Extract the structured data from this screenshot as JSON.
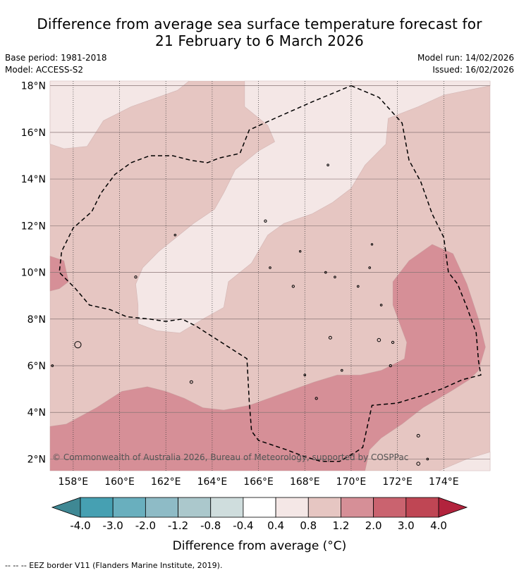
{
  "title": {
    "line1": "Difference from average sea surface temperature forecast for",
    "line2": "21 February to 6 March 2026"
  },
  "meta": {
    "base_period": "Base period: 1981-2018",
    "model": "Model: ACCESS-S2",
    "model_run": "Model run: 14/02/2026",
    "issued": "Issued: 16/02/2026"
  },
  "map": {
    "lon_range": [
      157,
      176
    ],
    "lat_range": [
      1.5,
      18.2
    ],
    "lat_ticks": [
      {
        "value": 18,
        "label": "18°N"
      },
      {
        "value": 16,
        "label": "16°N"
      },
      {
        "value": 14,
        "label": "14°N"
      },
      {
        "value": 12,
        "label": "12°N"
      },
      {
        "value": 10,
        "label": "10°N"
      },
      {
        "value": 8,
        "label": "8°N"
      },
      {
        "value": 6,
        "label": "6°N"
      },
      {
        "value": 4,
        "label": "4°N"
      },
      {
        "value": 2,
        "label": "2°N"
      }
    ],
    "lon_ticks": [
      {
        "value": 158,
        "label": "158°E"
      },
      {
        "value": 160,
        "label": "160°E"
      },
      {
        "value": 162,
        "label": "162°E"
      },
      {
        "value": 164,
        "label": "164°E"
      },
      {
        "value": 166,
        "label": "166°E"
      },
      {
        "value": 168,
        "label": "168°E"
      },
      {
        "value": 170,
        "label": "170°E"
      },
      {
        "value": 172,
        "label": "172°E"
      },
      {
        "value": 174,
        "label": "174°E"
      }
    ],
    "regions": [
      {
        "name": "anomaly-0.8-to-1.2",
        "color": "#e6c6c2",
        "points": [
          [
            157,
            18.2
          ],
          [
            176,
            18.2
          ],
          [
            176,
            1.5
          ],
          [
            157,
            1.5
          ]
        ]
      },
      {
        "name": "anomaly-0.4-to-0.8-north",
        "color": "#f4e7e6",
        "points": [
          [
            157,
            18.2
          ],
          [
            163,
            18.2
          ],
          [
            162.5,
            17.8
          ],
          [
            160.5,
            17.1
          ],
          [
            159.3,
            16.5
          ],
          [
            158.6,
            15.4
          ],
          [
            157.6,
            15.3
          ],
          [
            157,
            15.5
          ]
        ]
      },
      {
        "name": "anomaly-0.4-to-0.8-central",
        "color": "#f4e7e6",
        "points": [
          [
            165.4,
            18.2
          ],
          [
            176,
            18.2
          ],
          [
            176,
            18.0
          ],
          [
            174,
            17.6
          ],
          [
            172.9,
            17.1
          ],
          [
            171.6,
            16.6
          ],
          [
            171.5,
            15.5
          ],
          [
            170.6,
            14.6
          ],
          [
            170,
            13.6
          ],
          [
            169.2,
            13
          ],
          [
            168.3,
            12.5
          ],
          [
            167.1,
            12.1
          ],
          [
            166.4,
            11.6
          ],
          [
            165.7,
            10.4
          ],
          [
            164.7,
            9.6
          ],
          [
            164.5,
            8.5
          ],
          [
            163.6,
            8
          ],
          [
            162.6,
            7.4
          ],
          [
            161.6,
            7.5
          ],
          [
            160.8,
            7.8
          ],
          [
            160.8,
            8.6
          ],
          [
            160.7,
            9.5
          ],
          [
            161,
            10.2
          ],
          [
            161.7,
            10.9
          ],
          [
            163.2,
            12.1
          ],
          [
            164.1,
            12.7
          ],
          [
            164.5,
            13.4
          ],
          [
            165,
            14.4
          ],
          [
            166,
            15.2
          ],
          [
            166.7,
            15.6
          ],
          [
            166.4,
            16.3
          ],
          [
            165.4,
            17.1
          ]
        ]
      },
      {
        "name": "anomaly-0.4-to-0.8-southeast",
        "color": "#f4e7e6",
        "points": [
          [
            176,
            1.5
          ],
          [
            176,
            2.3
          ],
          [
            175,
            2
          ],
          [
            173.8,
            1.5
          ]
        ]
      },
      {
        "name": "anomaly-1.2-to-2.0-west",
        "color": "#d68f97",
        "points": [
          [
            157,
            10.7
          ],
          [
            157.6,
            10.5
          ],
          [
            157.8,
            9.6
          ],
          [
            157.4,
            9.3
          ],
          [
            157,
            9.2
          ]
        ]
      },
      {
        "name": "anomaly-1.2-to-2.0-south",
        "color": "#d68f97",
        "points": [
          [
            157,
            1.5
          ],
          [
            157,
            3.4
          ],
          [
            157.7,
            3.5
          ],
          [
            159,
            4.2
          ],
          [
            160.1,
            4.9
          ],
          [
            161.2,
            5.1
          ],
          [
            162,
            4.9
          ],
          [
            162.8,
            4.6
          ],
          [
            163.6,
            4.2
          ],
          [
            164.5,
            4.1
          ],
          [
            165.6,
            4.3
          ],
          [
            167,
            4.8
          ],
          [
            168.4,
            5.3
          ],
          [
            169.4,
            5.6
          ],
          [
            170.4,
            5.6
          ],
          [
            171.3,
            5.8
          ],
          [
            172.3,
            6.3
          ],
          [
            172.4,
            7
          ],
          [
            172.1,
            7.8
          ],
          [
            171.8,
            8.6
          ],
          [
            171.8,
            9.6
          ],
          [
            172.5,
            10.5
          ],
          [
            173.5,
            11.2
          ],
          [
            174.4,
            10.8
          ],
          [
            175,
            9.5
          ],
          [
            175.5,
            8
          ],
          [
            175.8,
            6.8
          ],
          [
            175.5,
            5.8
          ],
          [
            175.1,
            5.4
          ],
          [
            174.3,
            4.9
          ],
          [
            173.1,
            4.2
          ],
          [
            172.2,
            3.5
          ],
          [
            171.3,
            2.9
          ],
          [
            170.8,
            2.4
          ],
          [
            170.6,
            1.5
          ]
        ]
      }
    ],
    "eez_border": [
      [
        170,
        18
      ],
      [
        171.2,
        17.5
      ],
      [
        172.2,
        16.4
      ],
      [
        172.5,
        14.8
      ],
      [
        173,
        13.9
      ],
      [
        173.5,
        12.5
      ],
      [
        174,
        11.5
      ],
      [
        174.2,
        10
      ],
      [
        174.6,
        9.5
      ],
      [
        175,
        8.5
      ],
      [
        175.4,
        7.4
      ],
      [
        175.5,
        6.2
      ],
      [
        175.6,
        5.6
      ],
      [
        174.8,
        5.4
      ],
      [
        173.9,
        5
      ],
      [
        173,
        4.7
      ],
      [
        172,
        4.4
      ],
      [
        170.9,
        4.3
      ],
      [
        170.5,
        2.5
      ],
      [
        170.2,
        2.3
      ],
      [
        169.5,
        1.9
      ],
      [
        168.7,
        1.9
      ],
      [
        168,
        2.1
      ],
      [
        167.2,
        2.4
      ],
      [
        166,
        2.8
      ],
      [
        165.7,
        3.2
      ],
      [
        165.6,
        4.5
      ],
      [
        165.5,
        6.3
      ],
      [
        164.4,
        7
      ],
      [
        163.3,
        7.7
      ],
      [
        162.7,
        8
      ],
      [
        162,
        7.9
      ],
      [
        161.3,
        8
      ],
      [
        160.3,
        8.1
      ],
      [
        159.6,
        8.4
      ],
      [
        158.7,
        8.6
      ],
      [
        158.1,
        9.3
      ],
      [
        157.4,
        10
      ],
      [
        157.5,
        10.9
      ],
      [
        158,
        11.9
      ],
      [
        158.8,
        12.6
      ],
      [
        159.2,
        13.4
      ],
      [
        159.8,
        14.2
      ],
      [
        160.5,
        14.7
      ],
      [
        161.3,
        15
      ],
      [
        162.3,
        15
      ],
      [
        163.1,
        14.8
      ],
      [
        163.8,
        14.7
      ],
      [
        164.3,
        14.9
      ],
      [
        165.2,
        15.1
      ],
      [
        165.6,
        16.1
      ],
      [
        166.7,
        16.6
      ],
      [
        168.3,
        17.3
      ],
      [
        170,
        18
      ]
    ],
    "islands": [
      {
        "lon": 158.2,
        "lat": 6.9,
        "r": 0.14
      },
      {
        "lon": 163.1,
        "lat": 5.3,
        "r": 0.06
      },
      {
        "lon": 160.7,
        "lat": 9.8,
        "r": 0.05
      },
      {
        "lon": 166.5,
        "lat": 10.2,
        "r": 0.04
      },
      {
        "lon": 167.5,
        "lat": 9.4,
        "r": 0.05
      },
      {
        "lon": 168.9,
        "lat": 10.0,
        "r": 0.04
      },
      {
        "lon": 169.3,
        "lat": 9.8,
        "r": 0.04
      },
      {
        "lon": 169.1,
        "lat": 7.2,
        "r": 0.06
      },
      {
        "lon": 170.3,
        "lat": 9.4,
        "r": 0.04
      },
      {
        "lon": 170.8,
        "lat": 10.2,
        "r": 0.04
      },
      {
        "lon": 171.3,
        "lat": 8.6,
        "r": 0.04
      },
      {
        "lon": 171.2,
        "lat": 7.1,
        "r": 0.07
      },
      {
        "lon": 171.8,
        "lat": 7.0,
        "r": 0.05
      },
      {
        "lon": 171.7,
        "lat": 6.0,
        "r": 0.05
      },
      {
        "lon": 168.5,
        "lat": 4.6,
        "r": 0.05
      },
      {
        "lon": 168.0,
        "lat": 5.6,
        "r": 0.04
      },
      {
        "lon": 169.6,
        "lat": 5.8,
        "r": 0.04
      },
      {
        "lon": 172.9,
        "lat": 3.0,
        "r": 0.06
      },
      {
        "lon": 172.9,
        "lat": 1.8,
        "r": 0.07
      },
      {
        "lon": 173.3,
        "lat": 2.0,
        "r": 0.04
      },
      {
        "lon": 162.4,
        "lat": 11.6,
        "r": 0.04
      },
      {
        "lon": 166.3,
        "lat": 12.2,
        "r": 0.05
      },
      {
        "lon": 169.0,
        "lat": 14.6,
        "r": 0.04
      },
      {
        "lon": 170.9,
        "lat": 11.2,
        "r": 0.03
      },
      {
        "lon": 167.8,
        "lat": 10.9,
        "r": 0.03
      },
      {
        "lon": 157.1,
        "lat": 6.0,
        "r": 0.04
      }
    ],
    "credit": "© Commonwealth of Australia 2026, Bureau of Meteorology, supported by COSPPac"
  },
  "colorbar": {
    "title": "Difference from average (°C)",
    "low_extend_color": "#3f8894",
    "high_extend_color": "#b2233d",
    "bins": [
      {
        "color": "#46a0b2"
      },
      {
        "color": "#69afbe"
      },
      {
        "color": "#8ebbc6"
      },
      {
        "color": "#abc8cc"
      },
      {
        "color": "#cfdddd"
      },
      {
        "color": "#ffffff"
      },
      {
        "color": "#f4e7e6"
      },
      {
        "color": "#e6c6c2"
      },
      {
        "color": "#d68f97"
      },
      {
        "color": "#ca636f"
      },
      {
        "color": "#bf4654"
      }
    ],
    "labels": [
      "-4.0",
      "-3.0",
      "-2.0",
      "-1.2",
      "-0.8",
      "-0.4",
      "0.4",
      "0.8",
      "1.2",
      "2.0",
      "3.0",
      "4.0"
    ]
  },
  "footer": {
    "legend_text": "--  --  -- EEZ border V11 (Flanders Marine Institute, 2019)."
  }
}
